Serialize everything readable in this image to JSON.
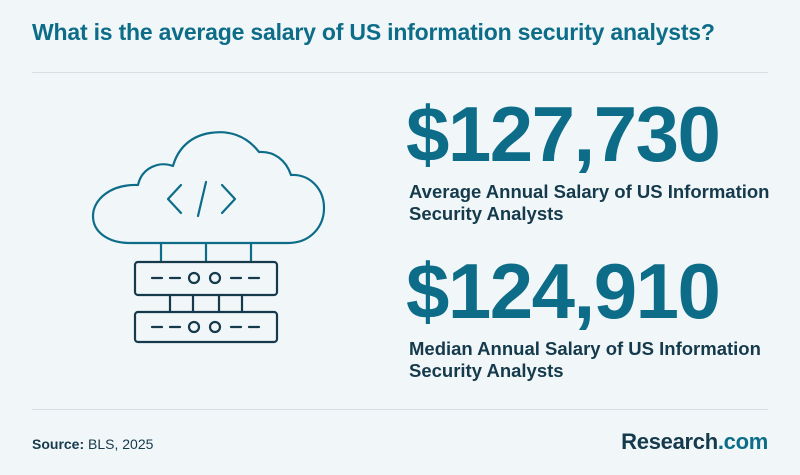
{
  "header": {
    "title": "What is the average salary of US information security analysts?"
  },
  "stats": [
    {
      "value": "$127,730",
      "label": "Average Annual Salary of US Information Security Analysts"
    },
    {
      "value": "$124,910",
      "label": "Median Annual Salary of US Information Security Analysts"
    }
  ],
  "footer": {
    "source_key": "Source:",
    "source_value": " BLS, 2025",
    "brand_name": "Research",
    "brand_tld": ".com"
  },
  "icons": [
    "cloud-code-icon",
    "server-rack-icon"
  ],
  "colors": {
    "accent": "#0d6d89",
    "text": "#143a4c",
    "background": "#f1f6f8"
  }
}
